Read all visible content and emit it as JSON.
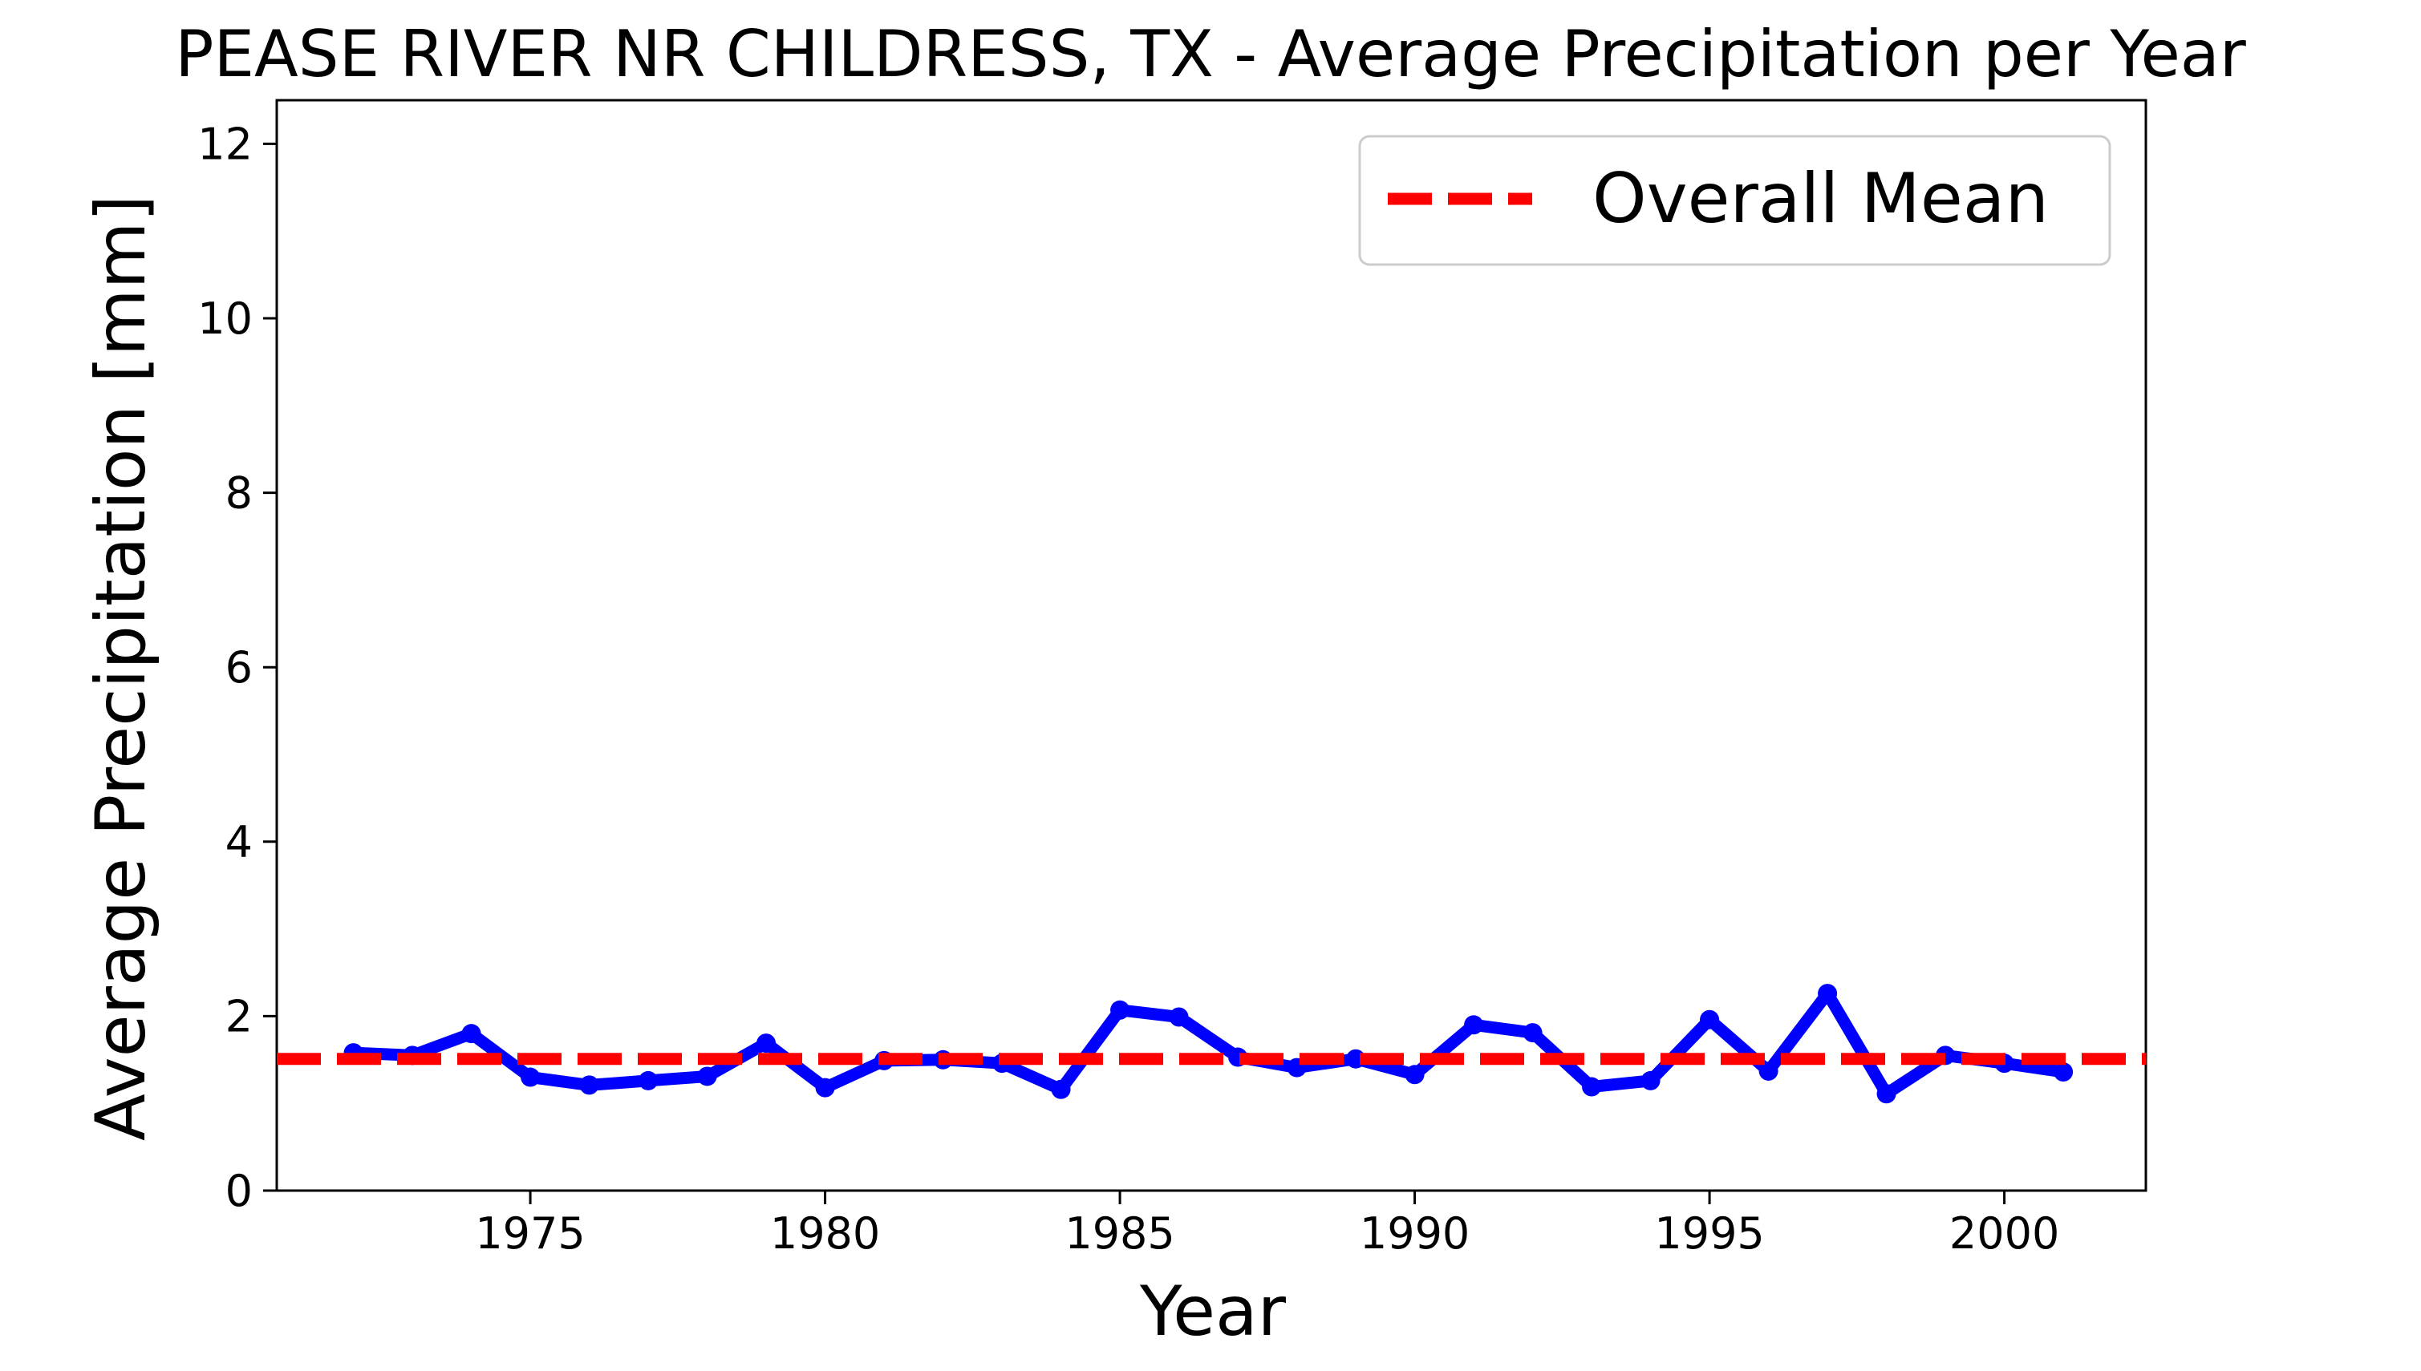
{
  "chart_data": {
    "type": "line",
    "title": "PEASE RIVER NR CHILDRESS, TX - Average Precipitation per Year",
    "xlabel": "Year",
    "ylabel": "Average Precipitation [mm]",
    "xlim": [
      1970.7,
      2002.4
    ],
    "ylim": [
      0,
      12.5
    ],
    "xticks": [
      1975,
      1980,
      1985,
      1990,
      1995,
      2000
    ],
    "yticks": [
      0,
      2,
      4,
      6,
      8,
      10,
      12
    ],
    "grid": false,
    "legend_position": "top-right",
    "series": [
      {
        "color": "#0000ff",
        "marker": "circle",
        "x": [
          1972,
          1973,
          1974,
          1975,
          1976,
          1977,
          1978,
          1979,
          1980,
          1981,
          1982,
          1983,
          1984,
          1985,
          1986,
          1987,
          1988,
          1989,
          1990,
          1991,
          1992,
          1993,
          1994,
          1995,
          1996,
          1997,
          1998,
          1999,
          2000,
          2001
        ],
        "y": [
          1.58,
          1.55,
          1.8,
          1.3,
          1.21,
          1.26,
          1.31,
          1.69,
          1.18,
          1.49,
          1.5,
          1.46,
          1.16,
          2.07,
          1.99,
          1.53,
          1.41,
          1.51,
          1.33,
          1.9,
          1.81,
          1.19,
          1.26,
          1.96,
          1.37,
          2.26,
          1.11,
          1.55,
          1.46,
          1.36
        ]
      }
    ],
    "reference_lines": [
      {
        "name": "Overall Mean",
        "y": 1.51,
        "color": "#ff0000",
        "style": "dashed"
      }
    ]
  }
}
